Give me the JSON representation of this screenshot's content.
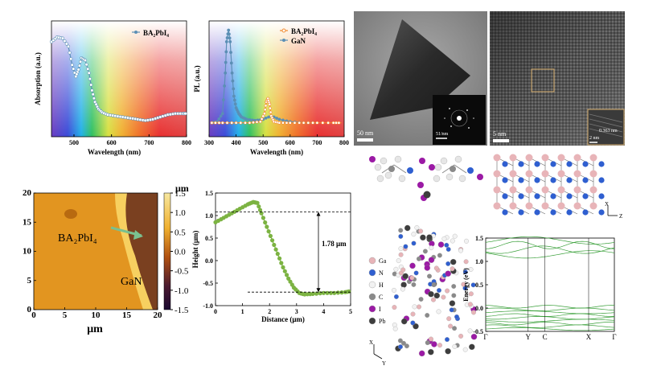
{
  "absorption": {
    "type": "line",
    "ylabel": "Absorption (a.u.)",
    "xlabel": "Wavelength (nm)",
    "xlim": [
      440,
      800
    ],
    "ylim": [
      0,
      1
    ],
    "xticks": [
      "500",
      "600",
      "700",
      "800"
    ],
    "legend": "BA₂PbI₄",
    "series": [
      {
        "name": "BA₂PbI₄",
        "x": [
          440,
          455,
          470,
          485,
          495,
          505,
          512,
          520,
          530,
          540,
          548,
          556,
          565,
          575,
          590,
          610,
          630,
          650,
          670,
          690,
          710,
          730,
          750,
          770,
          790,
          800
        ],
        "y": [
          0.82,
          0.86,
          0.85,
          0.78,
          0.62,
          0.52,
          0.58,
          0.68,
          0.66,
          0.55,
          0.4,
          0.3,
          0.24,
          0.21,
          0.19,
          0.18,
          0.17,
          0.16,
          0.15,
          0.14,
          0.15,
          0.17,
          0.19,
          0.2,
          0.2,
          0.2
        ]
      }
    ]
  },
  "pl": {
    "type": "line",
    "ylabel": "PL (a.u.)",
    "xlabel": "Wavelength (nm)",
    "xlim": [
      300,
      800
    ],
    "ylim": [
      0,
      1
    ],
    "xticks": [
      "300",
      "400",
      "500",
      "600",
      "700",
      "800"
    ],
    "legend": [
      "BA₂PbI₄",
      "GaN"
    ],
    "series": [
      {
        "name": "BA₂PbI₄",
        "color": "#f28a30",
        "x": [
          310,
          350,
          400,
          450,
          490,
          505,
          512,
          518,
          524,
          530,
          540,
          560,
          600,
          650,
          700,
          760,
          790
        ],
        "y": [
          0.12,
          0.12,
          0.12,
          0.12,
          0.13,
          0.2,
          0.3,
          0.33,
          0.28,
          0.18,
          0.13,
          0.12,
          0.12,
          0.12,
          0.12,
          0.12,
          0.12
        ]
      },
      {
        "name": "GaN",
        "color": "#5b8fb5",
        "x": [
          310,
          330,
          350,
          360,
          365,
          372,
          378,
          385,
          392,
          400,
          410,
          420,
          440,
          470,
          500,
          530,
          560,
          600,
          650,
          700
        ],
        "y": [
          0.12,
          0.13,
          0.2,
          0.55,
          0.82,
          0.92,
          0.82,
          0.55,
          0.35,
          0.25,
          0.2,
          0.17,
          0.15,
          0.14,
          0.15,
          0.18,
          0.15,
          0.13,
          0.12,
          0.12
        ]
      }
    ]
  },
  "tem_left": {
    "scalebar": "50 nm",
    "inset_scale": "51/nm"
  },
  "tem_right": {
    "scalebar": "5 nm",
    "inset_scale": "2 nm",
    "d_spacing": "0.363 nm"
  },
  "afm": {
    "xlabel": "μm",
    "colorbar_unit": "μm",
    "xticks": [
      "0",
      "5",
      "10",
      "15",
      "20"
    ],
    "yticks": [
      "0",
      "5",
      "10",
      "15",
      "20"
    ],
    "cbar_ticks": [
      "1.5",
      "1.0",
      "0.5",
      "0.0",
      "-0.5",
      "-1.0",
      "-1.5"
    ],
    "label_material": "BA₂PbI₄",
    "label_substrate": "GaN"
  },
  "height": {
    "type": "line",
    "ylabel": "Height (μm)",
    "xlabel": "Distance (μm)",
    "xlim": [
      0,
      5
    ],
    "ylim": [
      -1.0,
      1.5
    ],
    "xticks": [
      "0",
      "1",
      "2",
      "3",
      "4",
      "5"
    ],
    "yticks": [
      "-1.0",
      "-0.5",
      "0.0",
      "0.5",
      "1.0",
      "1.5"
    ],
    "annotation": "1.78 μm",
    "series": [
      {
        "name": "profile",
        "x": [
          0,
          0.3,
          0.6,
          0.9,
          1.2,
          1.4,
          1.55,
          1.7,
          1.9,
          2.1,
          2.3,
          2.5,
          2.7,
          2.9,
          3.1,
          3.3,
          3.6,
          4.0,
          4.4,
          4.8,
          5.0
        ],
        "y": [
          0.85,
          0.95,
          1.05,
          1.15,
          1.25,
          1.3,
          1.28,
          1.05,
          0.75,
          0.45,
          0.15,
          -0.15,
          -0.4,
          -0.6,
          -0.72,
          -0.75,
          -0.74,
          -0.72,
          -0.72,
          -0.7,
          -0.68
        ]
      }
    ]
  },
  "legend_atoms": {
    "items": [
      {
        "label": "Ga",
        "color": "#e8b4b8"
      },
      {
        "label": "N",
        "color": "#2f5fd0"
      },
      {
        "label": "H",
        "color": "#f2f2f2"
      },
      {
        "label": "C",
        "color": "#8a8a8a"
      },
      {
        "label": "I",
        "color": "#9b1aa5"
      },
      {
        "label": "Pb",
        "color": "#3d3d3d"
      }
    ]
  },
  "axes_top_right": {
    "x": "X",
    "z": "Z"
  },
  "axes_bottom_left": {
    "x": "X",
    "y": "Y"
  },
  "band": {
    "type": "line",
    "ylabel": "Energy (eV)",
    "yticks": [
      "-0.5",
      "0.0",
      "0.5",
      "1.0",
      "1.5"
    ],
    "ylim": [
      -0.5,
      1.5
    ],
    "kpoints": [
      "Γ",
      "Y",
      "C",
      "X",
      "Γ"
    ],
    "color": "#3aa03a"
  }
}
